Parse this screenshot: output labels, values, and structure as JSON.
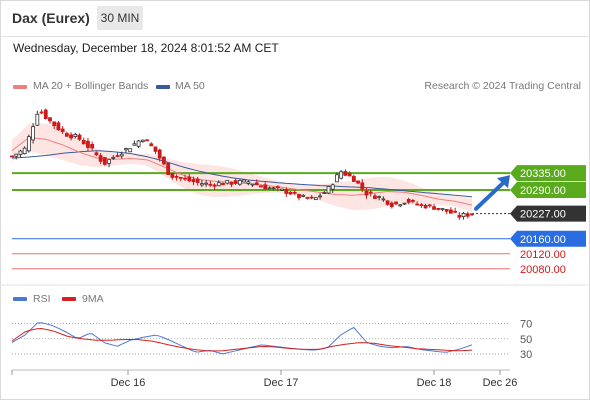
{
  "header": {
    "instrument": "Dax (Eurex)",
    "timeframe": "30 MIN",
    "datetime": "Wednesday, December 18, 2024 8:01:52 AM CET"
  },
  "legend": {
    "ma20_label": "MA 20 + Bollinger Bands",
    "ma50_label": "MA 50",
    "rsi_label": "RSI",
    "ma9_label": "9MA",
    "credit": "Research © 2024 Trading Central"
  },
  "colors": {
    "ma20": "#f08080",
    "ma50": "#3a5a9a",
    "bollinger": "#fde0de",
    "candle": "#cc1a1a",
    "resistance": "#5aaa1e",
    "pivot": "#2a6de0",
    "support": "#e87070",
    "current": "#333333",
    "rsi": "#4a78d6",
    "rsi_ma": "#d42020"
  },
  "chart_data": [
    {
      "type": "candlestick",
      "name": "price",
      "ylim": [
        20050,
        20530
      ],
      "price_samples": [
        20380,
        20400,
        20505,
        20470,
        20440,
        20430,
        20400,
        20360,
        20385,
        20405,
        20430,
        20390,
        20330,
        20320,
        20310,
        20305,
        20308,
        20310,
        20312,
        20300,
        20292,
        20285,
        20270,
        20265,
        20290,
        20340,
        20320,
        20280,
        20270,
        20250,
        20262,
        20250,
        20245,
        20235,
        20220,
        20227
      ],
      "ma20_samples": [
        20395,
        20430,
        20425,
        20410,
        20390,
        20375,
        20372,
        20374,
        20370,
        20350,
        20330,
        20318,
        20313,
        20310,
        20306,
        20302,
        20296,
        20290,
        20284,
        20278,
        20276,
        20280,
        20286,
        20284,
        20276,
        20266,
        20260,
        20250
      ],
      "ma50_samples": [
        20375,
        20378,
        20382,
        20388,
        20392,
        20395,
        20392,
        20387,
        20378,
        20366,
        20352,
        20340,
        20330,
        20322,
        20316,
        20312,
        20308,
        20305,
        20302,
        20300,
        20298,
        20296,
        20292,
        20288,
        20284,
        20280,
        20276,
        20272
      ],
      "levels": [
        {
          "value": 20335.0,
          "label": "20335.00",
          "kind": "resistance"
        },
        {
          "value": 20290.0,
          "label": "20290.00",
          "kind": "resistance"
        },
        {
          "value": 20227.0,
          "label": "20227.00",
          "kind": "current"
        },
        {
          "value": 20160.0,
          "label": "20160.00",
          "kind": "pivot"
        },
        {
          "value": 20120.0,
          "label": "20120.00",
          "kind": "support"
        },
        {
          "value": 20080.0,
          "label": "20080.00",
          "kind": "support"
        }
      ],
      "target_arrow": {
        "from": 20240,
        "to": 20335
      }
    },
    {
      "type": "line",
      "name": "RSI",
      "ylim": [
        22,
        80
      ],
      "y_ticks": [
        70,
        50,
        30
      ],
      "rsi_samples": [
        45,
        55,
        72,
        68,
        60,
        50,
        58,
        45,
        40,
        48,
        52,
        55,
        48,
        40,
        32,
        35,
        30,
        34,
        38,
        42,
        40,
        38,
        36,
        35,
        38,
        55,
        65,
        45,
        40,
        38,
        40,
        36,
        34,
        32,
        36,
        42
      ],
      "ma9_samples": [
        47,
        60,
        64,
        60,
        53,
        50,
        48,
        48,
        49,
        49,
        47,
        43,
        39,
        36,
        34,
        34,
        36,
        38,
        40,
        39,
        37,
        36,
        36,
        40,
        43,
        45,
        44,
        41,
        39,
        37,
        36,
        35,
        34,
        35
      ]
    }
  ],
  "x_axis": {
    "ticks": [
      "Dec 16",
      "Dec 17",
      "Dec 18",
      "Dec 26"
    ]
  }
}
